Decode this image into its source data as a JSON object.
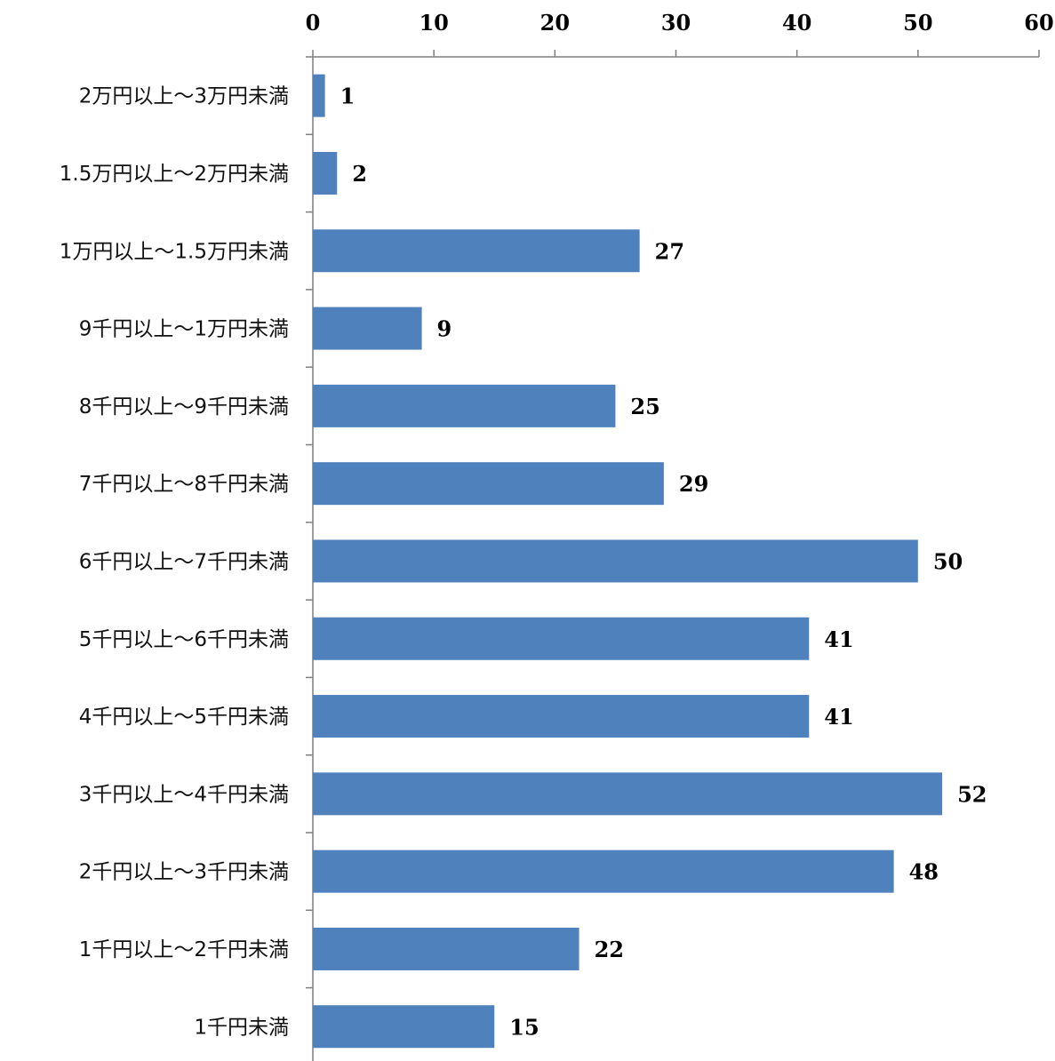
{
  "chart_data": {
    "type": "bar",
    "orientation": "horizontal",
    "title": "",
    "xlabel": "",
    "ylabel": "",
    "xlim": [
      0,
      60
    ],
    "x_ticks": [
      0,
      10,
      20,
      30,
      40,
      50,
      60
    ],
    "x_axis_position": "top",
    "grid": false,
    "legend": "none",
    "bar_color": "#4f81bd",
    "categories": [
      "2万円以上～3万円未満",
      "1.5万円以上～2万円未満",
      "1万円以上～1.5万円未満",
      "9千円以上～1万円未満",
      "8千円以上～9千円未満",
      "7千円以上～8千円未満",
      "6千円以上～7千円未満",
      "5千円以上～6千円未満",
      "4千円以上～5千円未満",
      "3千円以上～4千円未満",
      "2千円以上～3千円未満",
      "1千円以上～2千円未満",
      "1千円未満"
    ],
    "values": [
      1,
      2,
      27,
      9,
      25,
      29,
      50,
      41,
      41,
      52,
      48,
      22,
      15
    ]
  }
}
